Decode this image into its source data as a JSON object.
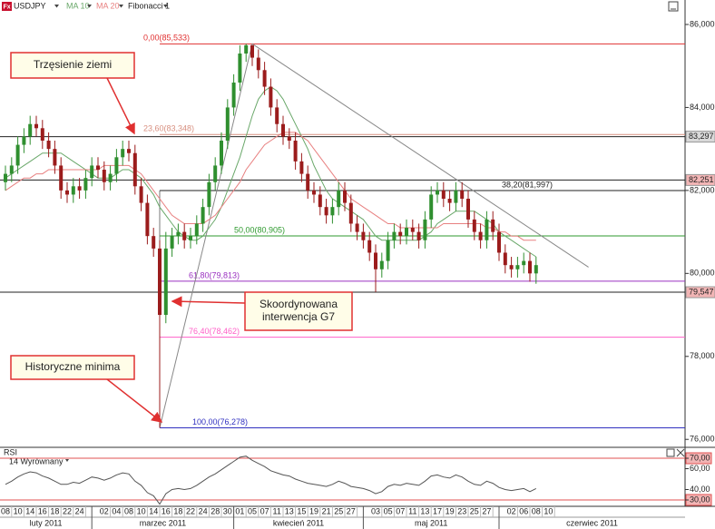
{
  "chart_data": [
    {
      "type": "candlestick",
      "symbol": "USDJPY",
      "categories": [
        "08",
        null,
        "10",
        null,
        "14",
        null,
        "16",
        null,
        "18",
        null,
        "22",
        null,
        "24",
        null,
        null,
        null,
        "02",
        null,
        "04",
        null,
        "08",
        null,
        "10",
        null,
        "14",
        null,
        "16",
        null,
        "18",
        null,
        "22",
        null,
        "24",
        null,
        "28",
        null,
        "30",
        null,
        "01",
        null,
        "05",
        null,
        "07",
        null,
        "11",
        null,
        "13",
        null,
        "15",
        null,
        "19",
        null,
        "21",
        null,
        "25",
        null,
        "27",
        null,
        null,
        null,
        "03",
        null,
        "05",
        null,
        "07",
        null,
        "11",
        null,
        "13",
        null,
        "17",
        null,
        "19",
        null,
        "23",
        null,
        "25",
        null,
        "27",
        null,
        null,
        null,
        "02",
        null,
        "06",
        null,
        "08",
        null,
        "10"
      ],
      "months": [
        "luty 2011",
        "marzec 2011",
        "kwiecień 2011",
        "maj 2011",
        "czerwiec 2011"
      ],
      "open": [
        82.2,
        82.4,
        82.6,
        83.1,
        83.3,
        83.6,
        83.5,
        83.2,
        83.0,
        82.6,
        82.0,
        81.9,
        82.1,
        82.0,
        82.3,
        82.6,
        82.5,
        82.2,
        82.4,
        82.8,
        83.0,
        82.9,
        82.1,
        81.7,
        80.9,
        80.6,
        79.0,
        80.6,
        80.9,
        81.0,
        80.8,
        80.9,
        81.2,
        81.6,
        82.2,
        82.6,
        83.2,
        84.0,
        84.6,
        85.3,
        85.5,
        85.2,
        84.9,
        84.5,
        84.0,
        83.6,
        83.3,
        83.2,
        82.7,
        82.4,
        82.0,
        81.9,
        81.6,
        81.4,
        81.6,
        82.0,
        81.7,
        81.2,
        81.0,
        80.8,
        80.5,
        80.1,
        80.3,
        80.8,
        81.0,
        80.9,
        81.1,
        81.0,
        80.8,
        81.3,
        81.9,
        82.0,
        81.8,
        81.7,
        82.0,
        81.8,
        81.3,
        81.0,
        80.8,
        81.3,
        81.0,
        80.5,
        80.2,
        80.1,
        80.2,
        80.3,
        80.0,
        null,
        null
      ],
      "high": [
        82.6,
        82.8,
        83.3,
        83.5,
        83.8,
        83.8,
        83.7,
        83.4,
        83.2,
        82.8,
        82.2,
        82.3,
        82.3,
        82.5,
        82.8,
        82.8,
        82.7,
        82.6,
        83.0,
        83.2,
        83.2,
        83.1,
        82.3,
        81.9,
        81.1,
        80.8,
        81.0,
        81.1,
        81.2,
        81.2,
        81.1,
        81.4,
        81.8,
        82.4,
        82.8,
        83.4,
        84.2,
        84.8,
        85.5,
        85.533,
        85.5,
        85.4,
        85.1,
        84.7,
        84.2,
        83.8,
        83.5,
        83.4,
        82.9,
        82.6,
        82.2,
        82.1,
        81.8,
        81.8,
        82.2,
        82.2,
        81.9,
        81.4,
        81.2,
        81.0,
        80.7,
        80.5,
        81.0,
        81.2,
        81.2,
        81.3,
        81.3,
        81.2,
        81.5,
        82.1,
        82.2,
        82.2,
        82.0,
        82.2,
        82.2,
        82.0,
        81.5,
        81.2,
        81.5,
        81.5,
        81.2,
        80.7,
        80.4,
        80.4,
        80.5,
        80.5,
        80.4,
        null,
        null
      ],
      "low": [
        82.0,
        82.2,
        82.4,
        82.9,
        83.1,
        83.3,
        83.0,
        82.8,
        82.4,
        81.8,
        81.7,
        81.7,
        81.8,
        81.8,
        82.1,
        82.3,
        82.0,
        82.0,
        82.2,
        82.6,
        82.7,
        81.9,
        81.5,
        80.7,
        80.4,
        76.278,
        78.8,
        80.4,
        80.7,
        80.6,
        80.6,
        80.7,
        81.0,
        81.4,
        82.0,
        82.4,
        83.0,
        83.8,
        84.4,
        85.1,
        85.0,
        84.7,
        84.3,
        83.8,
        83.4,
        83.1,
        83.0,
        82.5,
        82.2,
        81.8,
        81.7,
        81.4,
        81.2,
        81.2,
        81.4,
        81.5,
        81.0,
        80.8,
        80.6,
        80.3,
        79.55,
        79.9,
        80.1,
        80.6,
        80.7,
        80.7,
        80.8,
        80.6,
        80.6,
        81.1,
        81.7,
        81.6,
        81.5,
        81.5,
        81.6,
        81.1,
        80.8,
        80.6,
        80.6,
        80.8,
        80.3,
        80.0,
        79.9,
        79.9,
        80.0,
        79.8,
        79.75,
        null,
        null
      ],
      "close": [
        82.4,
        82.6,
        83.1,
        83.3,
        83.6,
        83.5,
        83.2,
        83.0,
        82.6,
        82.0,
        81.9,
        82.1,
        82.0,
        82.3,
        82.6,
        82.5,
        82.2,
        82.4,
        82.8,
        83.0,
        82.9,
        82.1,
        81.7,
        80.9,
        80.6,
        79.0,
        80.6,
        80.9,
        81.0,
        80.8,
        80.9,
        81.2,
        81.6,
        82.2,
        82.6,
        83.2,
        84.0,
        84.6,
        85.3,
        85.5,
        85.2,
        84.9,
        84.5,
        84.0,
        83.6,
        83.3,
        83.2,
        82.7,
        82.4,
        82.0,
        81.9,
        81.6,
        81.4,
        81.6,
        82.0,
        81.7,
        81.2,
        81.0,
        80.8,
        80.5,
        80.1,
        80.3,
        80.8,
        81.0,
        80.9,
        81.1,
        81.0,
        80.8,
        81.3,
        81.9,
        82.0,
        81.8,
        81.7,
        82.0,
        81.8,
        81.3,
        81.0,
        80.8,
        81.3,
        81.0,
        80.5,
        80.2,
        80.1,
        80.2,
        80.3,
        80.0,
        80.2,
        null,
        null
      ],
      "up_color": "#2f8f2f",
      "down_color": "#9b1c1c",
      "series": [
        {
          "name": "MA 10",
          "color": "#6aa86a",
          "values": [
            82.3,
            82.4,
            82.5,
            82.6,
            82.7,
            82.8,
            82.9,
            82.9,
            82.9,
            82.9,
            82.8,
            82.7,
            82.6,
            82.5,
            82.4,
            82.3,
            82.3,
            82.3,
            82.4,
            82.5,
            82.5,
            82.4,
            82.3,
            82.1,
            81.9,
            81.6,
            81.4,
            81.2,
            81.0,
            80.9,
            80.8,
            80.8,
            80.9,
            81.1,
            81.3,
            81.6,
            82.0,
            82.4,
            82.8,
            83.3,
            83.8,
            84.2,
            84.4,
            84.5,
            84.4,
            84.2,
            83.9,
            83.6,
            83.3,
            83.0,
            82.6,
            82.3,
            82.0,
            81.8,
            81.7,
            81.6,
            81.5,
            81.4,
            81.3,
            81.1,
            80.9,
            80.8,
            80.8,
            80.8,
            80.8,
            80.8,
            80.8,
            80.8,
            80.9,
            81.0,
            81.2,
            81.3,
            81.4,
            81.5,
            81.5,
            81.5,
            81.5,
            81.4,
            81.3,
            81.2,
            81.0,
            80.9,
            80.8,
            80.7,
            80.6,
            80.5,
            80.4,
            null,
            null
          ]
        },
        {
          "name": "MA 20",
          "color": "#e88080",
          "values": [
            82.0,
            82.1,
            82.2,
            82.3,
            82.3,
            82.4,
            82.4,
            82.5,
            82.5,
            82.5,
            82.5,
            82.5,
            82.5,
            82.5,
            82.5,
            82.5,
            82.6,
            82.6,
            82.6,
            82.6,
            82.6,
            82.5,
            82.4,
            82.2,
            82.0,
            81.8,
            81.6,
            81.4,
            81.3,
            81.2,
            81.2,
            81.2,
            81.2,
            81.3,
            81.4,
            81.6,
            81.8,
            82.0,
            82.2,
            82.5,
            82.7,
            82.9,
            83.1,
            83.2,
            83.3,
            83.4,
            83.4,
            83.4,
            83.3,
            83.2,
            83.0,
            82.8,
            82.6,
            82.4,
            82.2,
            82.0,
            81.8,
            81.7,
            81.6,
            81.5,
            81.4,
            81.3,
            81.2,
            81.2,
            81.1,
            81.1,
            81.1,
            81.1,
            81.1,
            81.1,
            81.1,
            81.2,
            81.2,
            81.2,
            81.2,
            81.2,
            81.2,
            81.2,
            81.1,
            81.1,
            81.0,
            81.0,
            80.9,
            80.9,
            80.8,
            80.8,
            80.8,
            null,
            null
          ]
        }
      ],
      "ylim": [
        75.83,
        86.59
      ],
      "yticks": [
        {
          "value": 86,
          "label": "86,000"
        },
        {
          "value": 84,
          "label": "84,000"
        },
        {
          "value": 82,
          "label": "82,000"
        },
        {
          "value": 80,
          "label": "80,000"
        },
        {
          "value": 78,
          "label": "78,000"
        },
        {
          "value": 76,
          "label": "76,000"
        }
      ],
      "hlines": [
        {
          "value": 83.297,
          "label": "83,297",
          "box": "#d9d9d9"
        },
        {
          "value": 82.251,
          "label": "82,251",
          "box": "#f2b5b5"
        },
        {
          "value": 79.547,
          "label": "79,547",
          "box": "#f2b5b5"
        }
      ],
      "fibonacci": {
        "name": "Fibonacci 1",
        "x": [
          25,
          40
        ],
        "levels": [
          {
            "value": 85.533,
            "label": "0,00(85,533)",
            "color": "#e03030"
          },
          {
            "value": 83.348,
            "label": "23,60(83,348)",
            "color": "#d89080"
          },
          {
            "value": 81.997,
            "label": "38,20(81,997)",
            "color": "#222222"
          },
          {
            "value": 80.905,
            "label": "50,00(80,905)",
            "color": "#2e9a2e"
          },
          {
            "value": 79.813,
            "label": "61,80(79,813)",
            "color": "#9a30c0"
          },
          {
            "value": 78.462,
            "label": "76,40(78,462)",
            "color": "#ff5fc8"
          },
          {
            "value": 76.278,
            "label": "100,00(76,278)",
            "color": "#3030c0"
          }
        ]
      },
      "trendlines": [
        {
          "x": [
            25,
            40
          ],
          "y": [
            76.278,
            85.533
          ]
        },
        {
          "x": [
            40,
            94.5
          ],
          "y": [
            85.533,
            80.15
          ]
        }
      ],
      "annotations": [
        {
          "lines": [
            "Trzęsienie ziemi"
          ]
        },
        {
          "lines": [
            "Skoordynowana",
            "interwencja G7"
          ]
        },
        {
          "lines": [
            "Historyczne minima"
          ]
        }
      ]
    },
    {
      "type": "line",
      "title": "RSI",
      "subtitle": "14 Wyrównany",
      "color": "#555555",
      "values": [
        45,
        48,
        52,
        55,
        57,
        56,
        53,
        51,
        48,
        45,
        45,
        47,
        46,
        49,
        52,
        51,
        49,
        51,
        54,
        56,
        55,
        48,
        44,
        37,
        34,
        26,
        36,
        40,
        41,
        40,
        41,
        44,
        48,
        52,
        55,
        59,
        63,
        67,
        71,
        72,
        68,
        65,
        62,
        58,
        56,
        54,
        53,
        50,
        48,
        46,
        45,
        44,
        43,
        45,
        48,
        46,
        43,
        42,
        41,
        39,
        36,
        38,
        43,
        45,
        44,
        46,
        45,
        44,
        48,
        53,
        54,
        52,
        51,
        54,
        52,
        48,
        45,
        44,
        48,
        46,
        42,
        40,
        39,
        40,
        41,
        38,
        41,
        null,
        null
      ],
      "ylim": [
        23.9,
        79.6
      ],
      "yticks": [
        {
          "value": 70,
          "label": "70,00"
        },
        {
          "value": 60,
          "label": "60,00"
        },
        {
          "value": 40,
          "label": "40,00"
        },
        {
          "value": 30,
          "label": "30,00"
        }
      ],
      "hlines": [
        {
          "value": 70,
          "color": "#e05050"
        },
        {
          "value": 30,
          "color": "#e05050"
        }
      ]
    }
  ]
}
